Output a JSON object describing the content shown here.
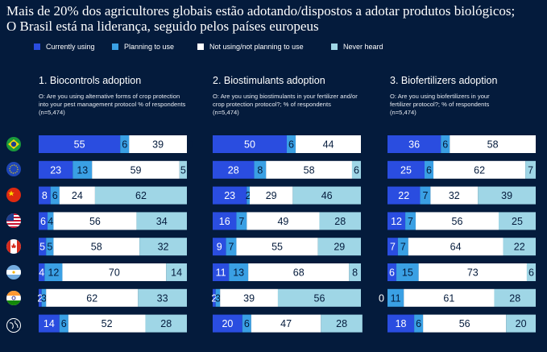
{
  "title": "Mais de 20% dos agricultores globais estão adotando/dispostos a adotar produtos biológicos; O Brasil está na liderança, seguido pelos países europeus",
  "legend": [
    {
      "label": "Currently using",
      "color": "#2a4de0"
    },
    {
      "label": "Planning to use",
      "color": "#3aa0e4"
    },
    {
      "label": "Not using/not planning to use",
      "color": "#ffffff"
    },
    {
      "label": "Never heard",
      "color": "#9fd6e6"
    }
  ],
  "flags": [
    {
      "name": "brazil-flag-icon"
    },
    {
      "name": "eu-flag-icon"
    },
    {
      "name": "china-flag-icon"
    },
    {
      "name": "usa-flag-icon"
    },
    {
      "name": "canada-flag-icon"
    },
    {
      "name": "argentina-flag-icon"
    },
    {
      "name": "india-flag-icon"
    },
    {
      "name": "globe-icon"
    }
  ],
  "panels": [
    {
      "title": "1. Biocontrols  adoption",
      "question": "O: Are you using alternative forms of crop protection into your pest management protocol % of respondents (n=5,474)"
    },
    {
      "title": "2. Biostimulants adoption",
      "question": "O: Are you using biostimulants in your fertilizer and/or crop protection protocol?; % of respondents (n=5,474)"
    },
    {
      "title": "3. Biofertilizers adoption",
      "question": "O: Are you using biofertilizers in your fertilizer protocol?; % of respondents (n=5,474)"
    }
  ],
  "chart_data": [
    {
      "type": "bar",
      "orientation": "horizontal",
      "stacked": true,
      "title": "1. Biocontrols  adoption",
      "rows": [
        "Brazil",
        "EU",
        "China",
        "USA",
        "Canada",
        "Argentina",
        "India",
        "Global"
      ],
      "series": [
        {
          "name": "Currently using",
          "values": [
            55,
            23,
            8,
            6,
            5,
            4,
            2,
            14
          ]
        },
        {
          "name": "Planning to use",
          "values": [
            6,
            13,
            6,
            4,
            5,
            12,
            3,
            6
          ]
        },
        {
          "name": "Not using/not planning to use",
          "values": [
            39,
            59,
            24,
            56,
            58,
            70,
            62,
            52
          ]
        },
        {
          "name": "Never heard",
          "values": [
            0,
            5,
            62,
            34,
            32,
            14,
            33,
            28
          ]
        }
      ]
    },
    {
      "type": "bar",
      "orientation": "horizontal",
      "stacked": true,
      "title": "2. Biostimulants adoption",
      "rows": [
        "Brazil",
        "EU",
        "China",
        "USA",
        "Canada",
        "Argentina",
        "India",
        "Global"
      ],
      "series": [
        {
          "name": "Currently using",
          "values": [
            50,
            28,
            23,
            16,
            9,
            11,
            2,
            20
          ]
        },
        {
          "name": "Planning to use",
          "values": [
            6,
            8,
            2,
            7,
            7,
            13,
            3,
            6
          ]
        },
        {
          "name": "Not using/not planning to use",
          "values": [
            44,
            58,
            29,
            49,
            55,
            68,
            39,
            47
          ]
        },
        {
          "name": "Never heard",
          "values": [
            0,
            6,
            46,
            28,
            29,
            8,
            56,
            28
          ]
        }
      ]
    },
    {
      "type": "bar",
      "orientation": "horizontal",
      "stacked": true,
      "title": "3. Biofertilizers adoption",
      "rows": [
        "Brazil",
        "EU",
        "China",
        "USA",
        "Canada",
        "Argentina",
        "India",
        "Global"
      ],
      "series": [
        {
          "name": "Currently using",
          "values": [
            36,
            25,
            22,
            12,
            7,
            6,
            0,
            18
          ]
        },
        {
          "name": "Planning to use",
          "values": [
            6,
            6,
            7,
            7,
            7,
            15,
            11,
            6
          ]
        },
        {
          "name": "Not using/not planning to use",
          "values": [
            58,
            62,
            32,
            56,
            64,
            73,
            61,
            56
          ]
        },
        {
          "name": "Never heard",
          "values": [
            0,
            7,
            39,
            25,
            22,
            6,
            28,
            20
          ]
        }
      ]
    }
  ]
}
